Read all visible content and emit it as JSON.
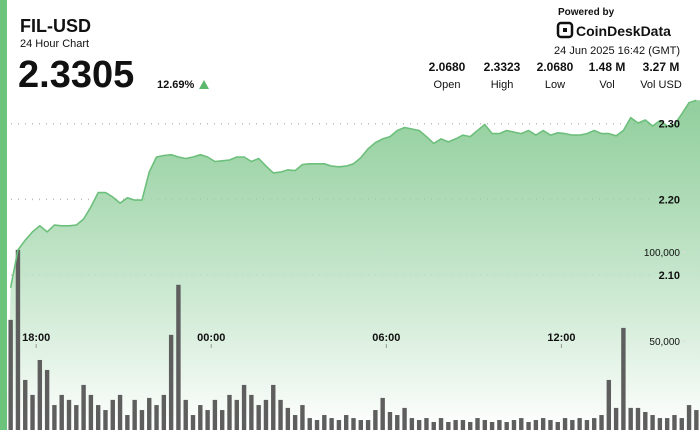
{
  "chart_data": {
    "type": "area",
    "title": "FIL-USD",
    "subtitle": "24 Hour Chart",
    "last_price": "2.3305",
    "change": "12.69%",
    "powered_by": "Powered by",
    "brand": "CoinDeskData",
    "timestamp": "24 Jun 2025 16:42 (GMT)",
    "stats": [
      {
        "value": "2.0680",
        "label": "Open"
      },
      {
        "value": "2.3323",
        "label": "High"
      },
      {
        "value": "2.0680",
        "label": "Low"
      },
      {
        "value": "1.48 M",
        "label": "Vol"
      },
      {
        "value": "3.27 M",
        "label": "Vol USD"
      }
    ],
    "x": [
      -6.875,
      -6.625,
      -6.375,
      -6.125,
      -5.875,
      -5.625,
      -5.375,
      -5.125,
      -4.875,
      -4.625,
      -4.375,
      -4.125,
      -3.875,
      -3.625,
      -3.375,
      -3.125,
      -2.875,
      -2.625,
      -2.375,
      -2.125,
      -1.875,
      -1.625,
      -1.375,
      -1.125,
      -0.875,
      -0.625,
      -0.375,
      -0.125,
      0.125,
      0.375,
      0.625,
      0.875,
      1.125,
      1.375,
      1.625,
      1.875,
      2.125,
      2.375,
      2.625,
      2.875,
      3.125,
      3.375,
      3.625,
      3.875,
      4.125,
      4.375,
      4.625,
      4.875,
      5.125,
      5.375,
      5.625,
      5.875,
      6.125,
      6.375,
      6.625,
      6.875,
      7.125,
      7.375,
      7.625,
      7.875,
      8.125,
      8.375,
      8.625,
      8.875,
      9.125,
      9.375,
      9.625,
      9.875,
      10.125,
      10.375,
      10.625,
      10.875,
      11.125,
      11.375,
      11.625,
      11.875,
      12.125,
      12.375,
      12.625,
      12.875,
      13.125,
      13.375,
      13.625,
      13.875,
      14.125,
      14.375,
      14.625,
      14.875,
      15.125,
      15.375,
      15.625,
      15.875,
      16.125,
      16.375,
      16.625
    ],
    "xlim": [
      -7,
      16.75
    ],
    "xticks": [
      {
        "value": -6,
        "label": "18:00"
      },
      {
        "value": 0,
        "label": "00:00"
      },
      {
        "value": 6,
        "label": "06:00"
      },
      {
        "value": 12,
        "label": "12:00"
      }
    ],
    "ylim": [
      1.895,
      2.338
    ],
    "yticks": [
      {
        "value": 2.1,
        "label": "2.10"
      },
      {
        "value": 2.2,
        "label": "2.20"
      },
      {
        "value": 2.3,
        "label": "2.30"
      }
    ],
    "y2lim": [
      0,
      188000
    ],
    "y2ticks": [
      {
        "value": 50000,
        "label": "50,000"
      },
      {
        "value": 100000,
        "label": "100,000"
      }
    ],
    "grid": true,
    "series": [
      {
        "color": "#6dbf7c",
        "values": [
          2.083,
          2.133,
          2.146,
          2.157,
          2.165,
          2.157,
          2.166,
          2.165,
          2.165,
          2.166,
          2.174,
          2.19,
          2.209,
          2.209,
          2.203,
          2.195,
          2.202,
          2.199,
          2.199,
          2.236,
          2.256,
          2.258,
          2.259,
          2.256,
          2.254,
          2.256,
          2.259,
          2.256,
          2.25,
          2.251,
          2.252,
          2.256,
          2.256,
          2.25,
          2.254,
          2.244,
          2.235,
          2.236,
          2.239,
          2.238,
          2.246,
          2.247,
          2.247,
          2.247,
          2.244,
          2.243,
          2.244,
          2.247,
          2.255,
          2.267,
          2.275,
          2.28,
          2.283,
          2.291,
          2.295,
          2.293,
          2.291,
          2.283,
          2.274,
          2.28,
          2.276,
          2.28,
          2.285,
          2.283,
          2.291,
          2.299,
          2.287,
          2.287,
          2.291,
          2.289,
          2.287,
          2.291,
          2.285,
          2.291,
          2.285,
          2.288,
          2.287,
          2.285,
          2.285,
          2.287,
          2.291,
          2.287,
          2.287,
          2.284,
          2.291,
          2.308,
          2.301,
          2.305,
          2.297,
          2.304,
          2.297,
          2.299,
          2.313,
          2.328,
          2.331
        ]
      },
      {
        "type": "bar",
        "axis": "y2",
        "color": "#5e5e5e",
        "values": [
          61800,
          101100,
          28100,
          19700,
          39300,
          33700,
          14000,
          19700,
          16900,
          14000,
          25300,
          19700,
          14000,
          11200,
          16900,
          19700,
          8400,
          16900,
          11200,
          18000,
          14000,
          19700,
          53400,
          81500,
          16900,
          8400,
          14000,
          11200,
          16900,
          11200,
          19700,
          16900,
          25300,
          19700,
          14000,
          16900,
          25300,
          16900,
          12400,
          8400,
          14000,
          6700,
          5600,
          8400,
          6700,
          5600,
          8400,
          6700,
          5600,
          5600,
          11200,
          18000,
          10100,
          8400,
          12400,
          6700,
          5600,
          6700,
          4500,
          6700,
          4500,
          5600,
          5600,
          4500,
          6700,
          5600,
          4500,
          5600,
          4500,
          5600,
          6700,
          4500,
          5600,
          6700,
          5600,
          4500,
          6700,
          5600,
          6700,
          5600,
          6700,
          8400,
          28100,
          12400,
          57300,
          12400,
          12400,
          10100,
          8400,
          6700,
          6700,
          8400,
          6700,
          14000,
          11200
        ]
      }
    ]
  }
}
